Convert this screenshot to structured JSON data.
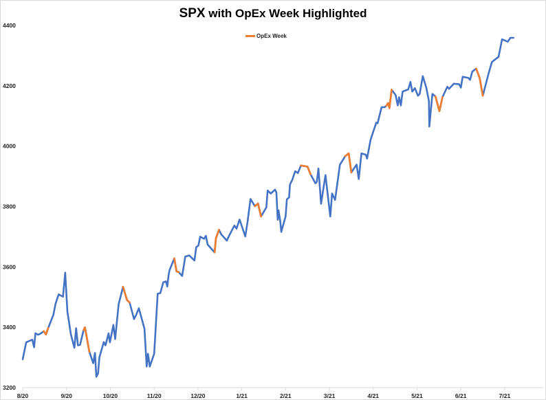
{
  "chart_data": {
    "type": "line",
    "title_main": "SPX",
    "title_rest": " with OpEx Week Highlighted",
    "xlabel": "",
    "ylabel": "",
    "x_units": "months since 8/20",
    "xlim": [
      0,
      11.88
    ],
    "ylim": [
      3200,
      4400
    ],
    "y_ticks": [
      3200,
      3400,
      3600,
      3800,
      4000,
      4200,
      4400
    ],
    "x_ticks": [
      {
        "v": 0,
        "label": "8/20"
      },
      {
        "v": 1,
        "label": "9/20"
      },
      {
        "v": 2,
        "label": "10/20"
      },
      {
        "v": 3,
        "label": "11/20"
      },
      {
        "v": 4,
        "label": "12/20"
      },
      {
        "v": 5,
        "label": "1/21"
      },
      {
        "v": 6,
        "label": "2/21"
      },
      {
        "v": 7,
        "label": "3/21"
      },
      {
        "v": 8,
        "label": "4/21"
      },
      {
        "v": 9,
        "label": "5/21"
      },
      {
        "v": 10,
        "label": "6/21"
      },
      {
        "v": 11,
        "label": "7/21"
      }
    ],
    "grid": false,
    "legend": {
      "position": "top-center",
      "entries": [
        {
          "name": "OpEx Week",
          "color": "#ED7D31"
        }
      ]
    },
    "colors": {
      "base": "#4472C4",
      "opex": "#ED7D31"
    },
    "series": [
      {
        "name": "SPX",
        "note": "points are [x, value, opexFlag]",
        "points": [
          [
            0.0,
            3294,
            0
          ],
          [
            0.08,
            3350,
            0
          ],
          [
            0.22,
            3359,
            0
          ],
          [
            0.26,
            3334,
            0
          ],
          [
            0.29,
            3380,
            0
          ],
          [
            0.35,
            3375,
            0
          ],
          [
            0.42,
            3380,
            0
          ],
          [
            0.48,
            3387,
            1
          ],
          [
            0.53,
            3376,
            1
          ],
          [
            0.58,
            3397,
            1
          ],
          [
            0.7,
            3441,
            0
          ],
          [
            0.75,
            3478,
            0
          ],
          [
            0.82,
            3509,
            0
          ],
          [
            0.92,
            3501,
            0
          ],
          [
            0.97,
            3581,
            0
          ],
          [
            1.02,
            3452,
            0
          ],
          [
            1.1,
            3376,
            0
          ],
          [
            1.18,
            3332,
            0
          ],
          [
            1.22,
            3397,
            0
          ],
          [
            1.26,
            3340,
            0
          ],
          [
            1.31,
            3342,
            0
          ],
          [
            1.39,
            3391,
            1
          ],
          [
            1.42,
            3400,
            1
          ],
          [
            1.52,
            3319,
            1
          ],
          [
            1.61,
            3281,
            0
          ],
          [
            1.65,
            3315,
            0
          ],
          [
            1.68,
            3236,
            0
          ],
          [
            1.72,
            3247,
            0
          ],
          [
            1.75,
            3300,
            0
          ],
          [
            1.85,
            3351,
            0
          ],
          [
            1.89,
            3340,
            0
          ],
          [
            1.96,
            3380,
            0
          ],
          [
            1.99,
            3350,
            0
          ],
          [
            2.07,
            3408,
            0
          ],
          [
            2.11,
            3361,
            0
          ],
          [
            2.19,
            3476,
            0
          ],
          [
            2.29,
            3534,
            1
          ],
          [
            2.38,
            3490,
            1
          ],
          [
            2.44,
            3482,
            1
          ],
          [
            2.54,
            3427,
            0
          ],
          [
            2.59,
            3441,
            0
          ],
          [
            2.65,
            3463,
            0
          ],
          [
            2.78,
            3395,
            0
          ],
          [
            2.83,
            3270,
            0
          ],
          [
            2.86,
            3312,
            0
          ],
          [
            2.9,
            3270,
            0
          ],
          [
            3.0,
            3312,
            0
          ],
          [
            3.08,
            3511,
            0
          ],
          [
            3.14,
            3513,
            0
          ],
          [
            3.21,
            3549,
            0
          ],
          [
            3.27,
            3552,
            0
          ],
          [
            3.3,
            3535,
            0
          ],
          [
            3.33,
            3573,
            0
          ],
          [
            3.35,
            3589,
            0
          ],
          [
            3.46,
            3628,
            1
          ],
          [
            3.51,
            3585,
            1
          ],
          [
            3.56,
            3583,
            1
          ],
          [
            3.64,
            3570,
            0
          ],
          [
            3.71,
            3634,
            0
          ],
          [
            3.8,
            3638,
            0
          ],
          [
            3.92,
            3621,
            0
          ],
          [
            3.96,
            3665,
            0
          ],
          [
            4.01,
            3671,
            0
          ],
          [
            4.05,
            3700,
            0
          ],
          [
            4.14,
            3693,
            0
          ],
          [
            4.18,
            3703,
            0
          ],
          [
            4.22,
            3674,
            0
          ],
          [
            4.38,
            3648,
            1
          ],
          [
            4.41,
            3695,
            1
          ],
          [
            4.48,
            3723,
            1
          ],
          [
            4.53,
            3708,
            0
          ],
          [
            4.66,
            3687,
            0
          ],
          [
            4.71,
            3703,
            0
          ],
          [
            4.83,
            3737,
            0
          ],
          [
            4.88,
            3727,
            0
          ],
          [
            4.95,
            3757,
            0
          ],
          [
            5.08,
            3701,
            0
          ],
          [
            5.13,
            3748,
            0
          ],
          [
            5.2,
            3825,
            0
          ],
          [
            5.3,
            3801,
            1
          ],
          [
            5.37,
            3810,
            1
          ],
          [
            5.44,
            3767,
            1
          ],
          [
            5.56,
            3797,
            0
          ],
          [
            5.59,
            3853,
            0
          ],
          [
            5.66,
            3843,
            0
          ],
          [
            5.76,
            3856,
            0
          ],
          [
            5.79,
            3847,
            0
          ],
          [
            5.82,
            3756,
            0
          ],
          [
            5.84,
            3787,
            0
          ],
          [
            5.88,
            3749,
            0
          ],
          [
            5.9,
            3716,
            0
          ],
          [
            6.0,
            3767,
            0
          ],
          [
            6.03,
            3824,
            0
          ],
          [
            6.08,
            3830,
            0
          ],
          [
            6.1,
            3873,
            0
          ],
          [
            6.15,
            3888,
            0
          ],
          [
            6.22,
            3917,
            0
          ],
          [
            6.28,
            3911,
            0
          ],
          [
            6.35,
            3936,
            1
          ],
          [
            6.5,
            3932,
            1
          ],
          [
            6.57,
            3907,
            1
          ],
          [
            6.68,
            3877,
            0
          ],
          [
            6.71,
            3881,
            0
          ],
          [
            6.75,
            3926,
            0
          ],
          [
            6.81,
            3809,
            0
          ],
          [
            6.91,
            3904,
            0
          ],
          [
            7.02,
            3767,
            0
          ],
          [
            7.06,
            3843,
            0
          ],
          [
            7.13,
            3822,
            0
          ],
          [
            7.24,
            3939,
            0
          ],
          [
            7.32,
            3957,
            0
          ],
          [
            7.36,
            3967,
            1
          ],
          [
            7.44,
            3976,
            1
          ],
          [
            7.5,
            3913,
            1
          ],
          [
            7.62,
            3939,
            0
          ],
          [
            7.67,
            3891,
            0
          ],
          [
            7.73,
            3976,
            0
          ],
          [
            7.83,
            3972,
            0
          ],
          [
            7.86,
            3959,
            0
          ],
          [
            7.94,
            4021,
            0
          ],
          [
            8.07,
            4078,
            0
          ],
          [
            8.1,
            4076,
            0
          ],
          [
            8.19,
            4129,
            0
          ],
          [
            8.26,
            4129,
            0
          ],
          [
            8.3,
            4134,
            1
          ],
          [
            8.34,
            4143,
            1
          ],
          [
            8.37,
            4126,
            1
          ],
          [
            8.42,
            4187,
            1
          ],
          [
            8.51,
            4169,
            0
          ],
          [
            8.56,
            4135,
            0
          ],
          [
            8.59,
            4162,
            0
          ],
          [
            8.63,
            4135,
            0
          ],
          [
            8.67,
            4181,
            0
          ],
          [
            8.8,
            4188,
            0
          ],
          [
            8.85,
            4213,
            0
          ],
          [
            8.89,
            4181,
            0
          ],
          [
            8.95,
            4192,
            0
          ],
          [
            9.02,
            4167,
            0
          ],
          [
            9.06,
            4173,
            0
          ],
          [
            9.13,
            4232,
            0
          ],
          [
            9.21,
            4194,
            0
          ],
          [
            9.27,
            4150,
            0
          ],
          [
            9.28,
            4065,
            0
          ],
          [
            9.35,
            4173,
            0
          ],
          [
            9.42,
            4165,
            1
          ],
          [
            9.51,
            4116,
            1
          ],
          [
            9.58,
            4162,
            1
          ],
          [
            9.69,
            4197,
            0
          ],
          [
            9.73,
            4190,
            0
          ],
          [
            9.84,
            4207,
            0
          ],
          [
            9.96,
            4205,
            0
          ],
          [
            10.0,
            4194,
            0
          ],
          [
            10.04,
            4230,
            0
          ],
          [
            10.17,
            4226,
            0
          ],
          [
            10.21,
            4220,
            0
          ],
          [
            10.26,
            4247,
            0
          ],
          [
            10.35,
            4257,
            1
          ],
          [
            10.43,
            4225,
            1
          ],
          [
            10.5,
            4167,
            1
          ],
          [
            10.64,
            4245,
            0
          ],
          [
            10.71,
            4279,
            0
          ],
          [
            10.86,
            4296,
            0
          ],
          [
            10.94,
            4354,
            0
          ],
          [
            11.07,
            4346,
            0
          ],
          [
            11.13,
            4359,
            0
          ],
          [
            11.2,
            4359,
            0
          ]
        ]
      }
    ]
  }
}
